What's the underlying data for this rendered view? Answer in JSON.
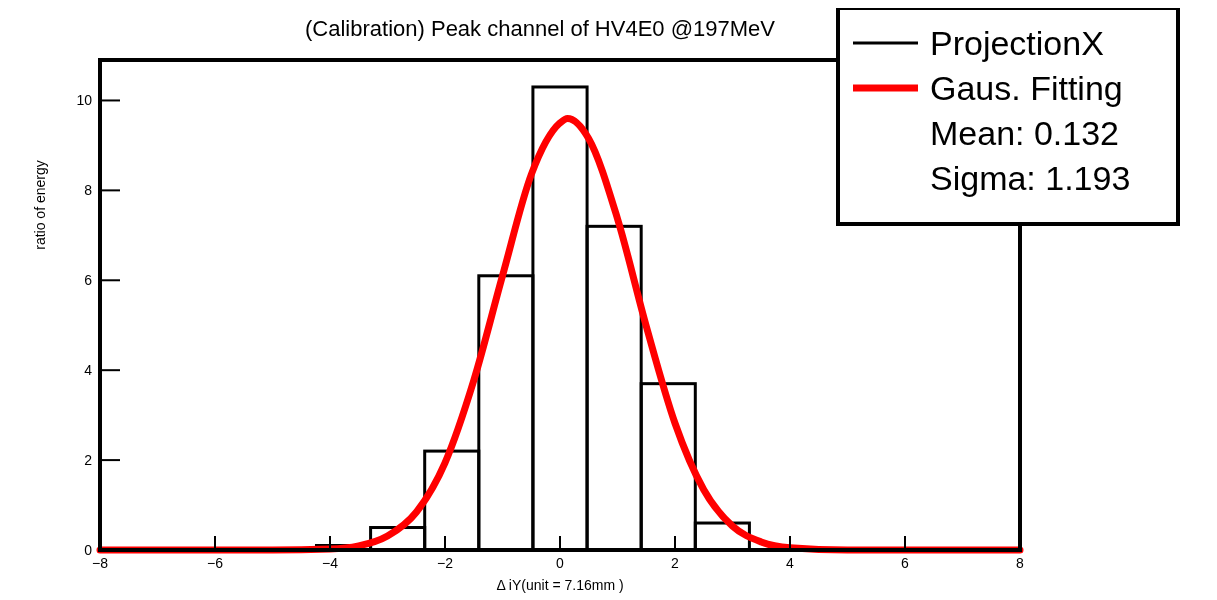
{
  "chart_data": {
    "type": "histogram",
    "title": "(Calibration) Peak channel of HV4E0 @197MeV",
    "xlabel": "Δ iY(unit = 7.16mm )",
    "ylabel": "ratio of energy",
    "bins": [
      -8,
      -7.059,
      -6.118,
      -5.176,
      -4.235,
      -3.294,
      -2.353,
      -1.412,
      -0.471,
      0.471,
      1.412,
      2.353,
      3.294,
      4.235,
      5.176,
      6.118,
      7.059,
      8
    ],
    "series": [
      {
        "name": "ProjectionX",
        "color": "#000000",
        "values": [
          0,
          0,
          0,
          0,
          0.1,
          0.5,
          2.2,
          6.1,
          10.3,
          7.2,
          3.7,
          0.6,
          0,
          0,
          0,
          0,
          0
        ]
      },
      {
        "name": "Gaus. Fitting",
        "type": "line",
        "color": "#ff0000",
        "x": [
          -8,
          -6,
          -5,
          -4,
          -3.5,
          -3,
          -2.5,
          -2,
          -1.5,
          -1,
          -0.5,
          0,
          0.13,
          0.5,
          1,
          1.5,
          2,
          2.5,
          3,
          3.5,
          4,
          5,
          6,
          8
        ],
        "values": [
          0,
          0,
          0,
          0.02,
          0.09,
          0.31,
          0.84,
          1.94,
          3.77,
          6.1,
          8.35,
          9.5,
          9.6,
          9.15,
          7.37,
          4.98,
          2.82,
          1.34,
          0.53,
          0.18,
          0.05,
          0,
          0,
          0
        ]
      }
    ],
    "annotations": [
      "Mean: 0.132",
      "Sigma: 1.193"
    ],
    "xlim": [
      -8,
      8
    ],
    "ylim": [
      0,
      10.9
    ],
    "xticks": [
      -8,
      -6,
      -4,
      -2,
      0,
      2,
      4,
      6,
      8
    ],
    "yticks": [
      0,
      2,
      4,
      6,
      8,
      10
    ],
    "legend": "top right",
    "grid": false
  }
}
